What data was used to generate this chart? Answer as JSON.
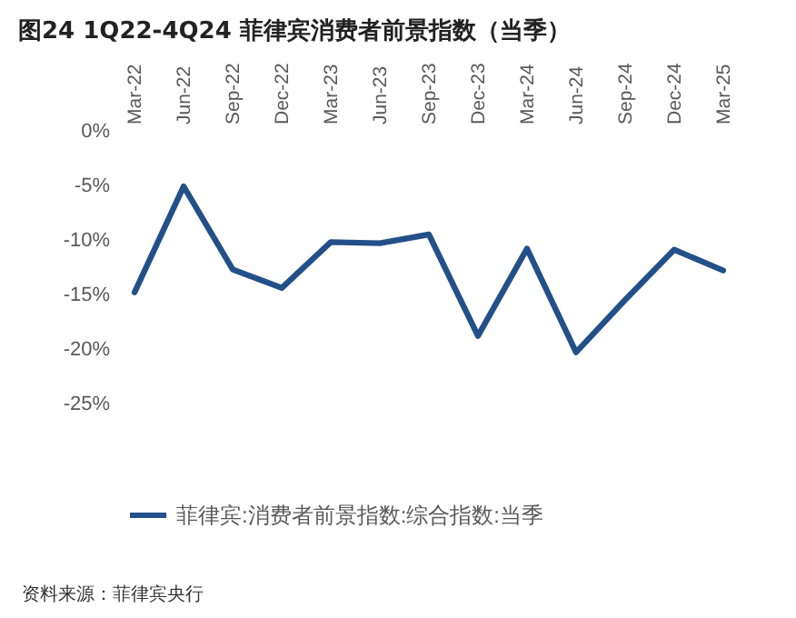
{
  "chart_data": {
    "type": "line",
    "title": "图24 1Q22-4Q24 菲律宾消费者前景指数（当季）",
    "categories": [
      "Mar-22",
      "Jun-22",
      "Sep-22",
      "Dec-22",
      "Mar-23",
      "Jun-23",
      "Sep-23",
      "Dec-23",
      "Mar-24",
      "Jun-24",
      "Sep-24",
      "Dec-24",
      "Mar-25"
    ],
    "series": [
      {
        "name": "菲律宾:消费者前景指数:综合指数:当季",
        "color": "#235088",
        "values": [
          -14.8,
          -5.1,
          -12.7,
          -14.4,
          -10.2,
          -10.3,
          -9.5,
          -18.8,
          -10.8,
          -20.3,
          -15.5,
          -10.9,
          -12.8
        ]
      }
    ],
    "ylim": [
      -25,
      0
    ],
    "yticks": [
      {
        "value": 0,
        "label": "0%"
      },
      {
        "value": -5,
        "label": "-5%"
      },
      {
        "value": -10,
        "label": "-10%"
      },
      {
        "value": -15,
        "label": "-15%"
      },
      {
        "value": -20,
        "label": "-20%"
      },
      {
        "value": -25,
        "label": "-25%"
      }
    ],
    "grid": false,
    "legend": "bottom",
    "marker": "none",
    "line_style": "solid",
    "annotations": [
      "资料来源：菲律宾央行"
    ]
  }
}
